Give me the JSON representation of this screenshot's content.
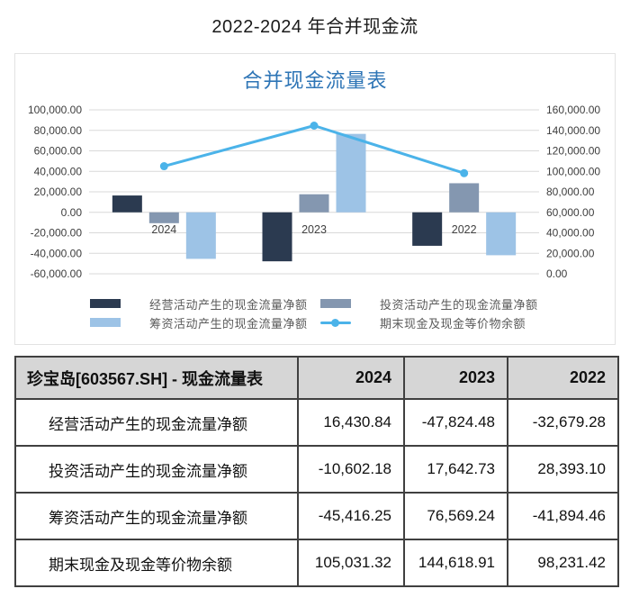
{
  "page_title": "2022-2024 年合并现金流",
  "chart_data": {
    "type": "bar",
    "title": "合并现金流量表",
    "categories": [
      "2024",
      "2023",
      "2022"
    ],
    "series": [
      {
        "name": "经营活动产生的现金流量净额",
        "type": "bar",
        "axis": "left",
        "color": "#2b3a50",
        "values": [
          16430.84,
          -47824.48,
          -32679.28
        ]
      },
      {
        "name": "投资活动产生的现金流量净额",
        "type": "bar",
        "axis": "left",
        "color": "#8497b0",
        "values": [
          -10602.18,
          17642.73,
          28393.1
        ]
      },
      {
        "name": "筹资活动产生的现金流量净额",
        "type": "bar",
        "axis": "left",
        "color": "#9dc3e6",
        "values": [
          -45416.25,
          76569.24,
          -41894.46
        ]
      },
      {
        "name": "期末现金及现金等价物余额",
        "type": "line",
        "axis": "right",
        "color": "#4bb3e9",
        "values": [
          105031.32,
          144618.91,
          98231.42
        ]
      }
    ],
    "left_axis": {
      "min": -60000,
      "max": 100000,
      "step": 20000,
      "tick_labels": [
        "100,000.00",
        "80,000.00",
        "60,000.00",
        "40,000.00",
        "20,000.00",
        "0.00",
        "-20,000.00",
        "-40,000.00",
        "-60,000.00"
      ]
    },
    "right_axis": {
      "min": 0,
      "max": 160000,
      "step": 20000,
      "tick_labels": [
        "160,000.00",
        "140,000.00",
        "120,000.00",
        "100,000.00",
        "80,000.00",
        "60,000.00",
        "40,000.00",
        "20,000.00",
        "0.00"
      ]
    },
    "grid": true,
    "legend_position": "bottom",
    "colors": {
      "grid": "#d9d9d9",
      "axis_text": "#3d3d3d",
      "category_text": "#404040",
      "title": "#2e75b6"
    }
  },
  "table": {
    "header": {
      "title": "珍宝岛[603567.SH] - 现金流量表",
      "years": [
        "2024",
        "2023",
        "2022"
      ]
    },
    "rows": [
      {
        "label": "经营活动产生的现金流量净额",
        "values": [
          "16,430.84",
          "-47,824.48",
          "-32,679.28"
        ]
      },
      {
        "label": "投资活动产生的现金流量净额",
        "values": [
          "-10,602.18",
          "17,642.73",
          "28,393.10"
        ]
      },
      {
        "label": "筹资活动产生的现金流量净额",
        "values": [
          "-45,416.25",
          "76,569.24",
          "-41,894.46"
        ]
      },
      {
        "label": "期末现金及现金等价物余额",
        "values": [
          "105,031.32",
          "144,618.91",
          "98,231.42"
        ]
      }
    ]
  }
}
